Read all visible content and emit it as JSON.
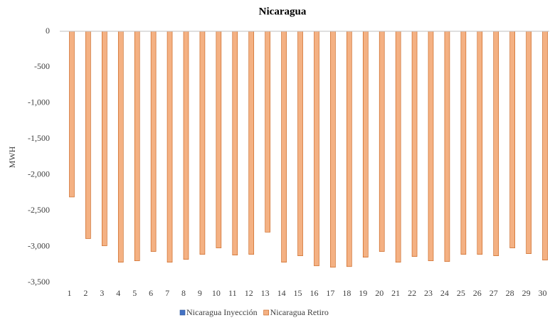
{
  "chart_data": {
    "type": "bar",
    "title": "Nicaragua",
    "y_label": "MWH",
    "categories": [
      "1",
      "2",
      "3",
      "4",
      "5",
      "6",
      "7",
      "8",
      "9",
      "10",
      "11",
      "12",
      "13",
      "14",
      "15",
      "16",
      "17",
      "18",
      "19",
      "20",
      "21",
      "22",
      "23",
      "24",
      "25",
      "26",
      "27",
      "28",
      "29",
      "30"
    ],
    "series": [
      {
        "name": "Nicaragua Inyección",
        "color": "#4472c4",
        "values": [
          0,
          0,
          0,
          0,
          0,
          0,
          0,
          0,
          0,
          0,
          0,
          0,
          0,
          0,
          0,
          0,
          0,
          0,
          0,
          0,
          0,
          0,
          0,
          0,
          0,
          0,
          0,
          0,
          0,
          0
        ]
      },
      {
        "name": "Nicaragua Retiro",
        "color": "#f4b183",
        "values": [
          -2310,
          -2890,
          -2990,
          -3220,
          -3200,
          -3070,
          -3220,
          -3180,
          -3110,
          -3020,
          -3120,
          -3110,
          -2800,
          -3220,
          -3130,
          -3270,
          -3290,
          -3280,
          -3150,
          -3070,
          -3220,
          -3140,
          -3200,
          -3210,
          -3110,
          -3110,
          -3130,
          -3020,
          -3100,
          -3190
        ]
      }
    ],
    "ylim": [
      -3500,
      0
    ],
    "yticks": [
      0,
      -500,
      {
        "value": -1000,
        "label": "-1,000"
      },
      {
        "value": -1500,
        "label": "-1,500"
      },
      {
        "value": -2000,
        "label": "-2,000"
      },
      {
        "value": -2500,
        "label": "-2,500"
      },
      {
        "value": -3000,
        "label": "-3,000"
      },
      {
        "value": -3500,
        "label": "-3,500"
      }
    ],
    "grid": false
  }
}
